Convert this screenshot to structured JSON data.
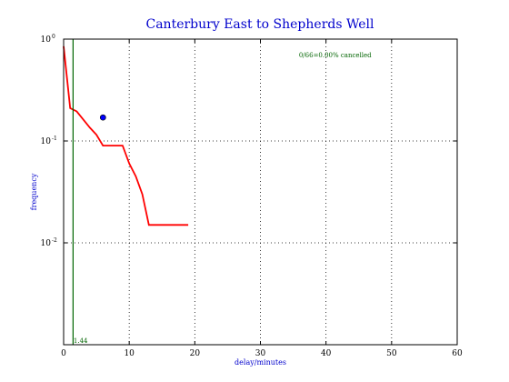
{
  "chart_data": {
    "type": "line",
    "title": "Canterbury East to Shepherds Well",
    "xlabel": "delay/minutes",
    "ylabel": "frequency",
    "xlim": [
      0,
      60
    ],
    "ylim": [
      0.001,
      1.0
    ],
    "yscale": "log",
    "grid": true,
    "x_ticks": [
      0,
      10,
      20,
      30,
      40,
      50,
      60
    ],
    "x_tick_labels": [
      "0",
      "10",
      "20",
      "30",
      "40",
      "50",
      "60"
    ],
    "y_ticks": [
      1.0,
      0.1,
      0.01
    ],
    "y_tick_labels": [
      {
        "base": "10",
        "exp": "0"
      },
      {
        "base": "10",
        "exp": "-1"
      },
      {
        "base": "10",
        "exp": "-2"
      }
    ],
    "series": [
      {
        "type": "line",
        "color": "#ff0000",
        "x": [
          0,
          1,
          2,
          4,
          5,
          6,
          9,
          10,
          11,
          12,
          13,
          14,
          15,
          16,
          17,
          18,
          19
        ],
        "y": [
          0.85,
          0.21,
          0.195,
          0.135,
          0.115,
          0.09,
          0.09,
          0.06,
          0.045,
          0.03,
          0.015,
          0.015,
          0.015,
          0.015,
          0.015,
          0.015,
          0.015
        ]
      },
      {
        "type": "vline",
        "color": "#006400",
        "x": 1.44,
        "label": "1.44"
      },
      {
        "type": "point",
        "color": "#0000ff",
        "x": 6,
        "y": 0.17
      }
    ],
    "annotation": "0/66=0.00% cancelled"
  },
  "colors": {
    "line": "#ff0000",
    "vline": "#006400",
    "marker": "#0000ff",
    "title": "#0000cc"
  }
}
